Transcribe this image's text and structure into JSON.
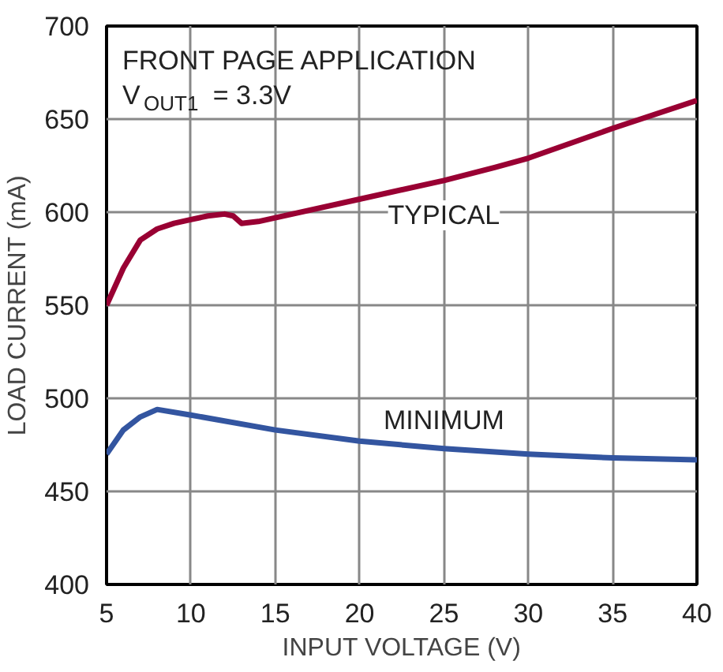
{
  "chart_data": {
    "type": "line",
    "xlabel": "INPUT VOLTAGE (V)",
    "ylabel": "LOAD CURRENT (mA)",
    "annotations": [
      "FRONT PAGE APPLICATION",
      "V$_{OUT1}$ = 3.3V"
    ],
    "xlim": [
      5,
      40
    ],
    "ylim": [
      400,
      700
    ],
    "xticks": [
      5,
      10,
      15,
      20,
      25,
      30,
      35,
      40
    ],
    "yticks": [
      400,
      450,
      500,
      550,
      600,
      650,
      700
    ],
    "grid": true,
    "line_style": "solid",
    "marker": "none",
    "series": [
      {
        "name": "TYPICAL",
        "color": "#990033",
        "x": [
          5,
          6,
          7,
          8,
          9,
          10,
          11,
          12,
          12.5,
          13,
          14,
          15,
          20,
          25,
          28,
          30,
          35,
          40
        ],
        "values": [
          550,
          570,
          585,
          591,
          594,
          596,
          598,
          599,
          598,
          594,
          595,
          597,
          607,
          617,
          624,
          629,
          645,
          660
        ]
      },
      {
        "name": "MINIMUM",
        "color": "#3355a0",
        "x": [
          5,
          6,
          7,
          8,
          10,
          15,
          20,
          25,
          30,
          35,
          40
        ],
        "values": [
          470,
          483,
          490,
          494,
          491,
          483,
          477,
          473,
          470,
          468,
          467
        ]
      }
    ]
  }
}
